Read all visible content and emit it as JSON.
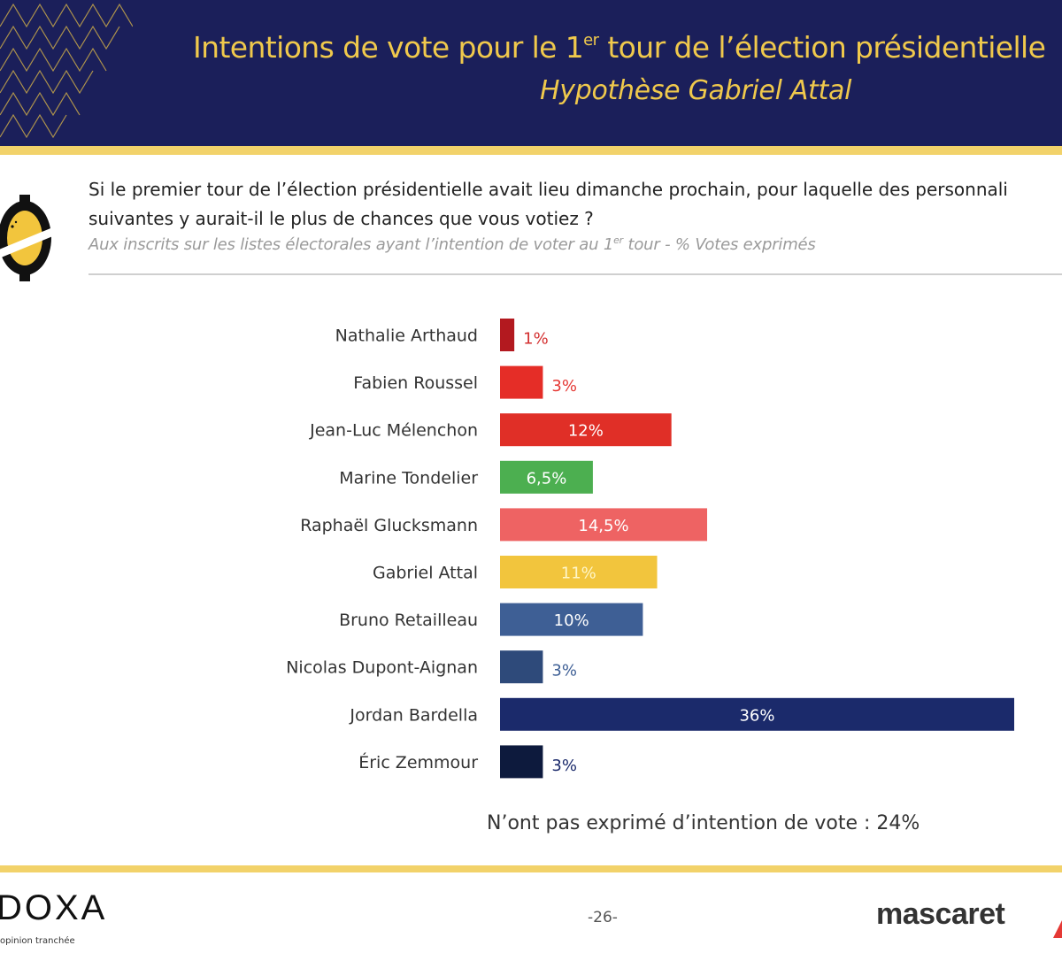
{
  "header": {
    "title_main": "Intentions de vote pour le 1",
    "title_sup": "er",
    "title_rest": " tour de l’élection présidentielle",
    "subtitle": "Hypothèse Gabriel Attal"
  },
  "question": {
    "line1": "Si le premier tour de l’élection présidentielle avait lieu dimanche prochain, pour laquelle des personnali",
    "line2": "suivantes y aurait-il le plus de chances que vous votiez ?",
    "note_a": "Aux inscrits sur les listes électorales ayant l’intention de voter au 1",
    "note_sup": "er",
    "note_b": " tour  - % Votes exprimés"
  },
  "chart_data": {
    "type": "bar",
    "orientation": "horizontal",
    "categories": [
      "Nathalie Arthaud",
      "Fabien Roussel",
      "Jean-Luc Mélenchon",
      "Marine Tondelier",
      "Raphaël Glucksmann",
      "Gabriel Attal",
      "Bruno Retailleau",
      "Nicolas Dupont-Aignan",
      "Jordan Bardella",
      "Éric Zemmour"
    ],
    "values": [
      1,
      3,
      12,
      6.5,
      14.5,
      11,
      10,
      3,
      36,
      3
    ],
    "value_labels": [
      "1%",
      "3%",
      "12%",
      "6,5%",
      "14,5%",
      "11%",
      "10%",
      "3%",
      "36%",
      "3%"
    ],
    "colors": [
      "#b3191f",
      "#e52d27",
      "#e02f27",
      "#4caf50",
      "#ee6363",
      "#f2c53d",
      "#3e5f95",
      "#2e4a7a",
      "#1b2a6b",
      "#0d1a3d"
    ],
    "label_colors": [
      "#d32f2f",
      "#e53935",
      "#ffffff",
      "#ffffff",
      "#ffffff",
      "#fff6c8",
      "#ffffff",
      "#3e5f95",
      "#ffffff",
      "#1b2a6b"
    ],
    "xlim": [
      0,
      36
    ]
  },
  "footnote": "N’ont pas exprimé d’intention de vote : 24%",
  "footer": {
    "brand_left": "DOXA",
    "brand_tag": "opinion tranchée",
    "page": "-26-",
    "brand_right": "mascaret"
  }
}
